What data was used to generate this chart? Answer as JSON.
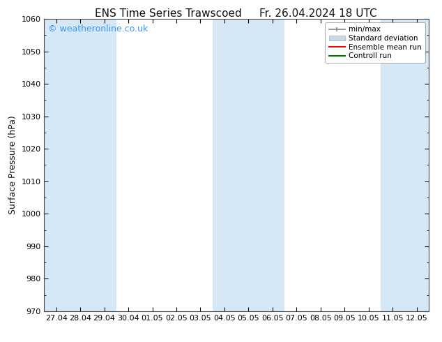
{
  "title_left": "ENS Time Series Trawscoed",
  "title_right": "Fr. 26.04.2024 18 UTC",
  "ylabel": "Surface Pressure (hPa)",
  "ylim": [
    970,
    1060
  ],
  "yticks": [
    970,
    980,
    990,
    1000,
    1010,
    1020,
    1030,
    1040,
    1050,
    1060
  ],
  "x_labels": [
    "27.04",
    "28.04",
    "29.04",
    "30.04",
    "01.05",
    "02.05",
    "03.05",
    "04.05",
    "05.05",
    "06.05",
    "07.05",
    "08.05",
    "09.05",
    "10.05",
    "11.05",
    "12.05"
  ],
  "watermark": "© weatheronline.co.uk",
  "watermark_color": "#3399ff",
  "bg_color": "#ffffff",
  "plot_bg_color": "#ffffff",
  "shaded_band_color": "#d6e8f5",
  "shade_ranges": [
    [
      0,
      3
    ],
    [
      7,
      10
    ],
    [
      14,
      16
    ]
  ],
  "legend_entries": [
    {
      "label": "min/max",
      "color": "#aaaaaa",
      "type": "errorbar"
    },
    {
      "label": "Standard deviation",
      "color": "#ccddee",
      "type": "fillbetween"
    },
    {
      "label": "Ensemble mean run",
      "color": "#ff0000",
      "type": "line"
    },
    {
      "label": "Controll run",
      "color": "#007700",
      "type": "line"
    }
  ],
  "title_fontsize": 11,
  "label_fontsize": 9,
  "tick_fontsize": 8,
  "watermark_fontsize": 9
}
